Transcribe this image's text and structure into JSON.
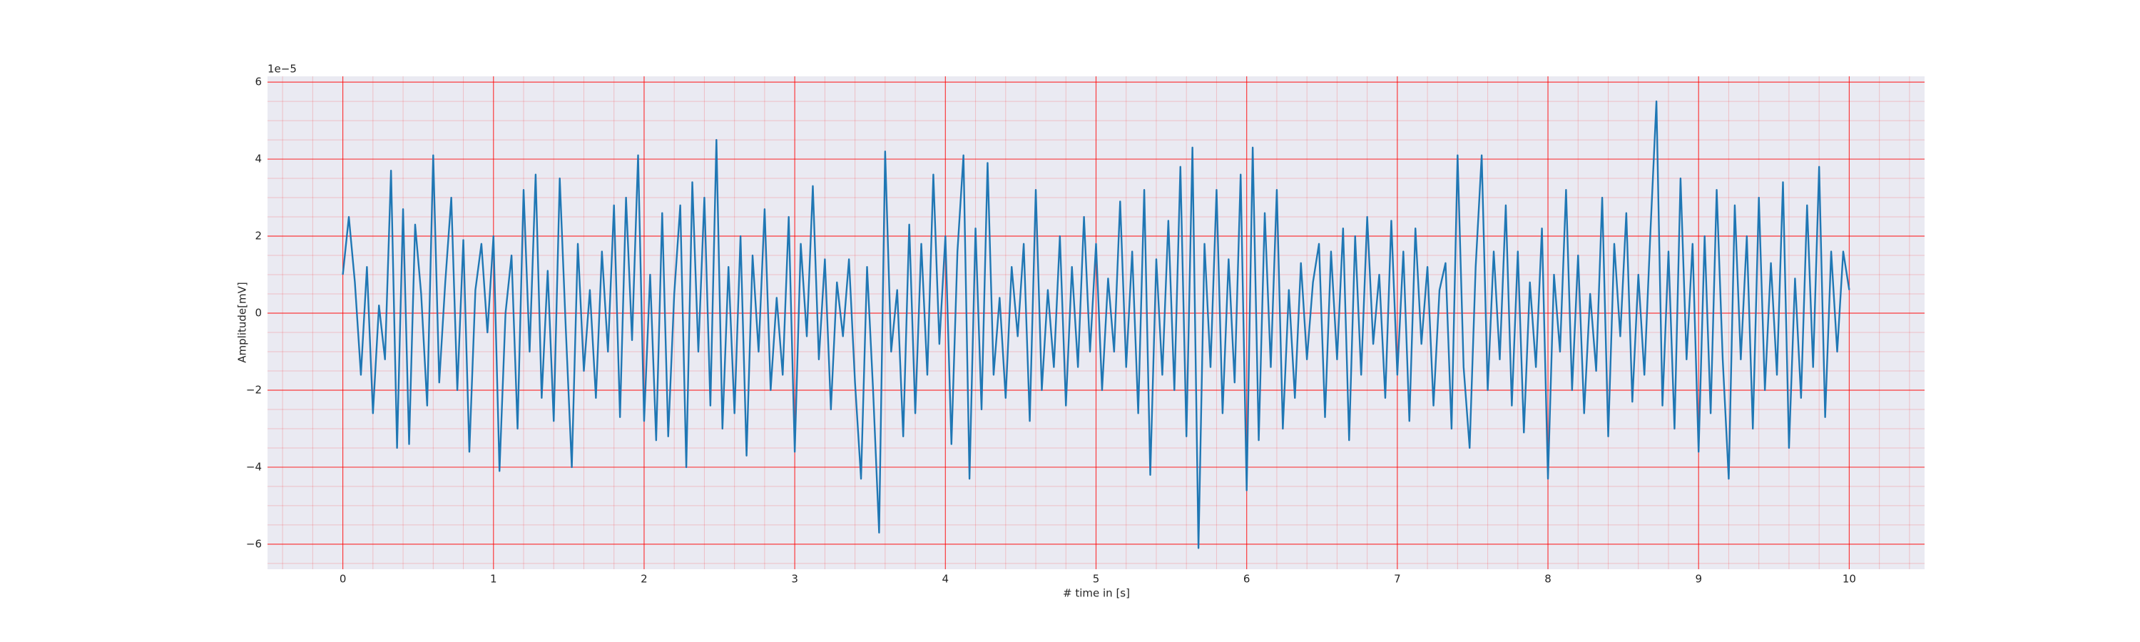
{
  "chart_data": {
    "type": "line",
    "x_label": "# time in [s]",
    "y_label": "Amplitude[mV]",
    "y_offset_label": "1e−5",
    "color": "#1f77b4",
    "background": "#eaeaf2",
    "grid": true,
    "grid_color": "#ff0000",
    "minor_grid": true,
    "xlim": [
      -0.5,
      10.5
    ],
    "ylim": [
      -6.65,
      6.15
    ],
    "xticks": [
      0,
      1,
      2,
      3,
      4,
      5,
      6,
      7,
      8,
      9,
      10
    ],
    "yticks": [
      {
        "value": -6,
        "label": "−6"
      },
      {
        "value": -4,
        "label": "−4"
      },
      {
        "value": -2,
        "label": "−2"
      },
      0,
      2,
      4,
      6
    ],
    "xticks_minor": [
      -0.4,
      -0.2,
      0.2,
      0.4,
      0.6,
      0.8,
      1.2,
      1.4,
      1.6,
      1.8,
      2.2,
      2.4,
      2.6,
      2.8,
      3.2,
      3.4,
      3.6,
      3.8,
      4.2,
      4.4,
      4.6,
      4.8,
      5.2,
      5.4,
      5.6,
      5.8,
      6.2,
      6.4,
      6.6,
      6.8,
      7.2,
      7.4,
      7.6,
      7.8,
      8.2,
      8.4,
      8.6,
      8.8,
      9.2,
      9.4,
      9.6,
      9.8,
      10.2,
      10.4
    ],
    "yticks_minor": [
      -6.5,
      -5.5,
      -5,
      -4.5,
      -3.5,
      -3,
      -2.5,
      -1.5,
      -1,
      -0.5,
      0.5,
      1,
      1.5,
      2.5,
      3,
      3.5,
      4.5,
      5,
      5.5
    ],
    "x": [
      0,
      0.04,
      0.08,
      0.12,
      0.16,
      0.2,
      0.24,
      0.28,
      0.32,
      0.36,
      0.4,
      0.44,
      0.48,
      0.52,
      0.56,
      0.6,
      0.64,
      0.68,
      0.72,
      0.76,
      0.8,
      0.84,
      0.88,
      0.92,
      0.96,
      1,
      1.04,
      1.08,
      1.12,
      1.16,
      1.2,
      1.24,
      1.28,
      1.32,
      1.36,
      1.4,
      1.44,
      1.48,
      1.52,
      1.56,
      1.6,
      1.64,
      1.68,
      1.72,
      1.76,
      1.8,
      1.84,
      1.88,
      1.92,
      1.96,
      2,
      2.04,
      2.08,
      2.12,
      2.16,
      2.2,
      2.24,
      2.28,
      2.32,
      2.36,
      2.4,
      2.44,
      2.48,
      2.52,
      2.56,
      2.6,
      2.64,
      2.68,
      2.72,
      2.76,
      2.8,
      2.84,
      2.88,
      2.92,
      2.96,
      3,
      3.04,
      3.08,
      3.12,
      3.16,
      3.2,
      3.24,
      3.28,
      3.32,
      3.36,
      3.4,
      3.44,
      3.48,
      3.52,
      3.56,
      3.6,
      3.64,
      3.68,
      3.72,
      3.76,
      3.8,
      3.84,
      3.88,
      3.92,
      3.96,
      4,
      4.04,
      4.08,
      4.12,
      4.16,
      4.2,
      4.24,
      4.28,
      4.32,
      4.36,
      4.4,
      4.44,
      4.48,
      4.52,
      4.56,
      4.6,
      4.64,
      4.68,
      4.72,
      4.76,
      4.8,
      4.84,
      4.88,
      4.92,
      4.96,
      5,
      5.04,
      5.08,
      5.12,
      5.16,
      5.2,
      5.24,
      5.28,
      5.32,
      5.36,
      5.4,
      5.44,
      5.48,
      5.52,
      5.56,
      5.6,
      5.64,
      5.68,
      5.72,
      5.76,
      5.8,
      5.84,
      5.88,
      5.92,
      5.96,
      6,
      6.04,
      6.08,
      6.12,
      6.16,
      6.2,
      6.24,
      6.28,
      6.32,
      6.36,
      6.4,
      6.44,
      6.48,
      6.52,
      6.56,
      6.6,
      6.64,
      6.68,
      6.72,
      6.76,
      6.8,
      6.84,
      6.88,
      6.92,
      6.96,
      7,
      7.04,
      7.08,
      7.12,
      7.16,
      7.2,
      7.24,
      7.28,
      7.32,
      7.36,
      7.4,
      7.44,
      7.48,
      7.52,
      7.56,
      7.6,
      7.64,
      7.68,
      7.72,
      7.76,
      7.8,
      7.84,
      7.88,
      7.92,
      7.96,
      8,
      8.04,
      8.08,
      8.12,
      8.16,
      8.2,
      8.24,
      8.28,
      8.32,
      8.36,
      8.4,
      8.44,
      8.48,
      8.52,
      8.56,
      8.6,
      8.64,
      8.68,
      8.72,
      8.76,
      8.8,
      8.84,
      8.88,
      8.92,
      8.96,
      9,
      9.04,
      9.08,
      9.12,
      9.16,
      9.2,
      9.24,
      9.28,
      9.32,
      9.36,
      9.4,
      9.44,
      9.48,
      9.52,
      9.56,
      9.6,
      9.64,
      9.68,
      9.72,
      9.76,
      9.8,
      9.84,
      9.88,
      9.92,
      9.96,
      10
    ],
    "values": [
      1.0,
      2.5,
      0.8,
      -1.6,
      1.2,
      -2.6,
      0.2,
      -1.2,
      3.7,
      -3.5,
      2.7,
      -3.4,
      2.3,
      0.5,
      -2.4,
      4.1,
      -1.8,
      0.8,
      3.0,
      -2.0,
      1.9,
      -3.6,
      0.6,
      1.8,
      -0.5,
      2.0,
      -4.1,
      0.0,
      1.5,
      -3.0,
      3.2,
      -1.0,
      3.6,
      -2.2,
      1.1,
      -2.8,
      3.5,
      -0.4,
      -4.0,
      1.8,
      -1.5,
      0.6,
      -2.2,
      1.6,
      -1.0,
      2.8,
      -2.7,
      3.0,
      -0.7,
      4.1,
      -2.8,
      1.0,
      -3.3,
      2.6,
      -3.2,
      0.5,
      2.8,
      -4.0,
      3.4,
      -1.0,
      3.0,
      -2.4,
      4.5,
      -3.0,
      1.2,
      -2.6,
      2.0,
      -3.7,
      1.5,
      -1.0,
      2.7,
      -2.0,
      0.4,
      -1.6,
      2.5,
      -3.6,
      1.8,
      -0.6,
      3.3,
      -1.2,
      1.4,
      -2.5,
      0.8,
      -0.6,
      1.4,
      -1.8,
      -4.3,
      1.2,
      -2.0,
      -5.7,
      4.2,
      -1.0,
      0.6,
      -3.2,
      2.3,
      -2.6,
      1.8,
      -1.6,
      3.6,
      -0.8,
      2.0,
      -3.4,
      1.6,
      4.1,
      -4.3,
      2.2,
      -2.5,
      3.9,
      -1.6,
      0.4,
      -2.2,
      1.2,
      -0.6,
      1.8,
      -2.8,
      3.2,
      -2.0,
      0.6,
      -1.4,
      2.0,
      -2.4,
      1.2,
      -1.4,
      2.5,
      -1.0,
      1.8,
      -2.0,
      0.9,
      -1.0,
      2.9,
      -1.4,
      1.6,
      -2.6,
      3.2,
      -4.2,
      1.4,
      -1.6,
      2.4,
      -2.0,
      3.8,
      -3.2,
      4.3,
      -6.1,
      1.8,
      -1.4,
      3.2,
      -2.6,
      1.4,
      -1.8,
      3.6,
      -4.6,
      4.3,
      -3.3,
      2.6,
      -1.4,
      3.2,
      -3.0,
      0.6,
      -2.2,
      1.3,
      -1.2,
      0.8,
      1.8,
      -2.7,
      1.6,
      -1.2,
      2.2,
      -3.3,
      2.0,
      -1.6,
      2.5,
      -0.8,
      1.0,
      -2.2,
      2.4,
      -1.6,
      1.6,
      -2.8,
      2.2,
      -0.8,
      1.2,
      -2.4,
      0.6,
      1.3,
      -3.0,
      4.1,
      -1.4,
      -3.5,
      1.2,
      4.1,
      -2.0,
      1.6,
      -1.2,
      2.8,
      -2.4,
      1.6,
      -3.1,
      0.8,
      -1.4,
      2.2,
      -4.3,
      1.0,
      -1.0,
      3.2,
      -2.0,
      1.5,
      -2.6,
      0.5,
      -1.5,
      3.0,
      -3.2,
      1.8,
      -0.6,
      2.6,
      -2.3,
      1.0,
      -1.6,
      2.1,
      5.5,
      -2.4,
      1.6,
      -3.0,
      3.5,
      -1.2,
      1.8,
      -3.6,
      2.0,
      -2.6,
      3.2,
      -1.2,
      -4.3,
      2.8,
      -1.2,
      2.0,
      -3.0,
      3.0,
      -2.0,
      1.3,
      -1.6,
      3.4,
      -3.5,
      0.9,
      -2.2,
      2.8,
      -1.4,
      3.8,
      -2.7,
      1.6,
      -1.0,
      1.6,
      0.6
    ]
  }
}
